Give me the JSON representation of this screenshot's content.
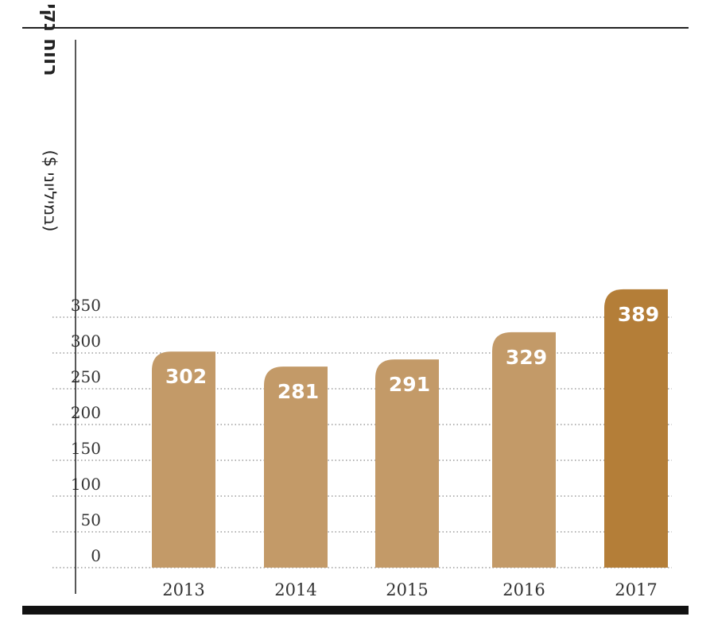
{
  "chart_data": {
    "type": "bar",
    "categories": [
      "2013",
      "2014",
      "2015",
      "2016",
      "2017"
    ],
    "values": [
      302,
      281,
      291,
      329,
      389
    ],
    "value_labels": [
      "302",
      "281",
      "291",
      "329",
      "389"
    ],
    "ylabel": "רווח נקי",
    "ylabel_unit": "(במיליוני $)",
    "ylim": [
      0,
      389
    ],
    "yticks": [
      0,
      50,
      100,
      150,
      200,
      250,
      300,
      350
    ],
    "grid": true,
    "colors": {
      "bar": "#c39a68",
      "highlight": "#b47e38",
      "grid": "#8a8a8a",
      "axis": "#222222",
      "rule": "#111111"
    }
  }
}
